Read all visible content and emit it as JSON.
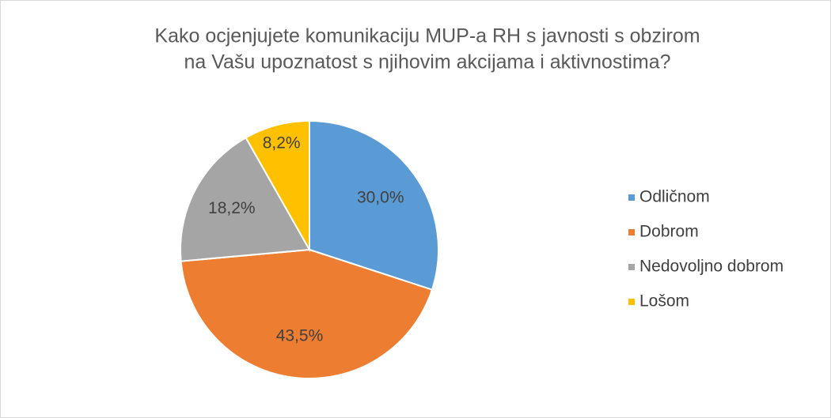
{
  "chart_data": {
    "type": "pie",
    "title": [
      "Kako ocjenjujete komunikaciju MUP-a RH s javnosti s obzirom",
      "na Vašu upoznatost s njihovim akcijama i aktivnostima?"
    ],
    "categories": [
      "Odličnom",
      "Dobrom",
      "Nedovoljno dobrom",
      "Lošom"
    ],
    "values": [
      30.0,
      43.5,
      18.2,
      8.2
    ],
    "value_labels": [
      "30,0%",
      "43,5%",
      "18,2%",
      "8,2%"
    ],
    "colors": [
      "#5b9bd5",
      "#ed7d31",
      "#a5a5a5",
      "#ffc000"
    ],
    "legend": "right"
  }
}
